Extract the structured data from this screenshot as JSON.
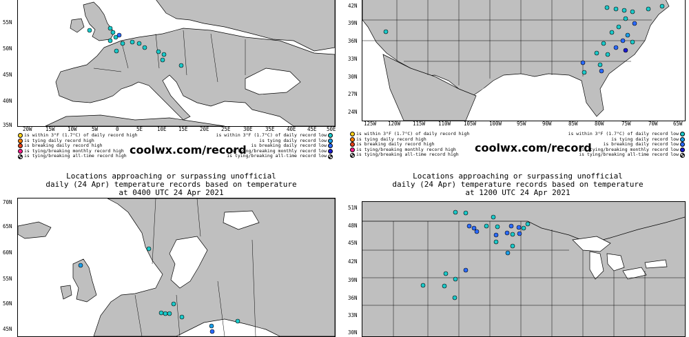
{
  "panels": [
    {
      "id": "europe-top",
      "lat_labels": [
        "55N",
        "50N",
        "45N",
        "40N",
        "35N"
      ],
      "lon_labels": [
        "20W",
        "15W",
        "10W",
        "5W",
        "0",
        "5E",
        "10E",
        "15E",
        "20E",
        "25E",
        "30E",
        "35E",
        "40E",
        "45E",
        "50E"
      ],
      "legend_left": [
        {
          "label": "is within 3°F (1.7°C) of daily record high",
          "color": "#ffd21a"
        },
        {
          "label": "is tying daily record high",
          "color": "#ff7f00"
        },
        {
          "label": "is breaking daily record high",
          "color": "#e8401a"
        },
        {
          "label": "is tying/breaking monthly record high",
          "color": "#ff1a8c"
        },
        {
          "label": "is tying/breaking all-time record high",
          "color": "star"
        }
      ],
      "legend_right": [
        {
          "label": "is within 3°F (1.7°C) of daily record low",
          "color": "#1ac9c9"
        },
        {
          "label": "is tying daily record low",
          "color": "#1a9ee8"
        },
        {
          "label": "is breaking daily record low",
          "color": "#2a6aff"
        },
        {
          "label": "is tying/breaking monthly record low",
          "color": "#1a1ad1"
        },
        {
          "label": "is tying/breaking all-time record low",
          "color": "star"
        }
      ],
      "watermark": "coolwx.com/record"
    },
    {
      "id": "usa-top",
      "lat_labels": [
        "42N",
        "39N",
        "36N",
        "33N",
        "30N",
        "27N",
        "24N"
      ],
      "lon_labels": [
        "125W",
        "120W",
        "115W",
        "110W",
        "105W",
        "100W",
        "95W",
        "90W",
        "85W",
        "80W",
        "75W",
        "70W",
        "65W"
      ],
      "legend_left": [
        {
          "label": "is within 3°F (1.7°C) of daily record high",
          "color": "#ffd21a"
        },
        {
          "label": "is tying daily record high",
          "color": "#ff7f00"
        },
        {
          "label": "is breaking daily record high",
          "color": "#e8401a"
        },
        {
          "label": "is tying/breaking monthly record high",
          "color": "#ff1a8c"
        },
        {
          "label": "is tying/breaking all-time record high",
          "color": "star"
        }
      ],
      "legend_right": [
        {
          "label": "is within 3°F (1.7°C) of daily record low",
          "color": "#1ac9c9"
        },
        {
          "label": "is tying daily record low",
          "color": "#1a9ee8"
        },
        {
          "label": "is breaking daily record low",
          "color": "#2a6aff"
        },
        {
          "label": "is tying/breaking monthly record low",
          "color": "#1a1ad1"
        },
        {
          "label": "is tying/breaking all-time record low",
          "color": "star"
        }
      ],
      "watermark": "coolwx.com/record"
    },
    {
      "id": "europe-bottom",
      "title_lines": [
        "Locations approaching or surpassing unofficial",
        "daily (24 Apr) temperature records based on temperature",
        "at 0400 UTC 24 Apr 2021"
      ],
      "lat_labels": [
        "70N",
        "65N",
        "60N",
        "55N",
        "50N",
        "45N"
      ]
    },
    {
      "id": "usa-bottom",
      "title_lines": [
        "Locations approaching or surpassing unofficial",
        "daily (24 Apr) temperature records based on temperature",
        "at 1200 UTC 24 Apr 2021"
      ],
      "lat_labels": [
        "51N",
        "48N",
        "45N",
        "42N",
        "39N",
        "36N",
        "33N",
        "30N"
      ]
    }
  ],
  "station_colors": {
    "near_low": "#1ac9c9",
    "tying_low": "#1a9ee8",
    "breaking_low": "#2a6aff",
    "monthly_low": "#1a1ad1"
  }
}
